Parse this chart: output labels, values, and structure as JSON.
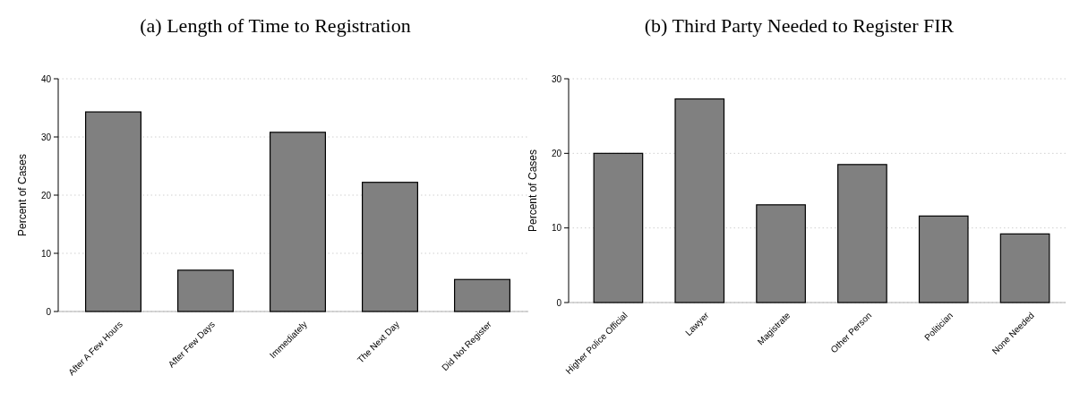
{
  "chart_data": [
    {
      "type": "bar",
      "title": "(a) Length of Time to Registration",
      "ylabel": "Percent of Cases",
      "categories": [
        "After A Few Hours",
        "After Few Days",
        "Immediately",
        "The Next Day",
        "Did Not Register"
      ],
      "values": [
        34.3,
        7.1,
        30.8,
        22.2,
        5.5
      ],
      "color": "#808080",
      "ylim": [
        0,
        40
      ],
      "yticks": [
        0,
        10,
        20,
        30,
        40
      ],
      "grid": "y"
    },
    {
      "type": "bar",
      "title": "(b) Third Party Needed to Register FIR",
      "ylabel": "Percent of Cases",
      "categories": [
        "Higher Police Official",
        "Lawyer",
        "Magistrate",
        "Other Person",
        "Politician",
        "None Needed"
      ],
      "values": [
        20.0,
        27.3,
        13.1,
        18.5,
        11.6,
        9.2
      ],
      "color": "#808080",
      "ylim": [
        0,
        30
      ],
      "yticks": [
        0,
        10,
        20,
        30
      ],
      "grid": "y"
    }
  ]
}
